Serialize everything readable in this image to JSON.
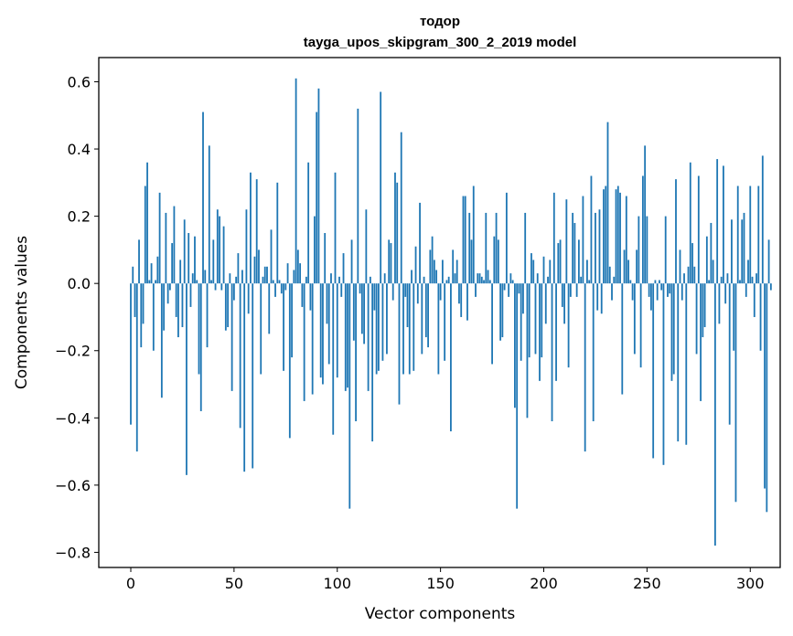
{
  "chart_data": {
    "type": "bar",
    "title": "тодор",
    "subtitle": "tayga_upos_skipgram_300_2_2019 model",
    "xlabel": "Vector components",
    "ylabel": "Components values",
    "xlim": [
      -15.5,
      314.5
    ],
    "ylim": [
      -0.845,
      0.672
    ],
    "xticks": [
      0,
      50,
      100,
      150,
      200,
      250,
      300
    ],
    "xtick_labels": [
      "0",
      "50",
      "100",
      "150",
      "200",
      "250",
      "300"
    ],
    "yticks": [
      -0.8,
      -0.6,
      -0.4,
      -0.2,
      0.0,
      0.2,
      0.4,
      0.6
    ],
    "ytick_labels": [
      "−0.8",
      "−0.6",
      "−0.4",
      "−0.2",
      "0.0",
      "0.2",
      "0.4",
      "0.6"
    ],
    "bar_color": "#1f77b4",
    "grid": false,
    "values": [
      -0.42,
      0.05,
      -0.1,
      -0.5,
      0.13,
      -0.19,
      -0.12,
      0.29,
      0.36,
      0.01,
      0.06,
      -0.2,
      0.01,
      0.08,
      0.27,
      -0.34,
      -0.14,
      0.21,
      -0.06,
      -0.02,
      0.12,
      0.23,
      -0.1,
      -0.16,
      0.07,
      -0.13,
      0.19,
      -0.57,
      0.15,
      -0.07,
      0.03,
      0.14,
      0.01,
      -0.27,
      -0.38,
      0.51,
      0.04,
      -0.19,
      0.41,
      0.01,
      0.13,
      -0.02,
      0.22,
      0.2,
      -0.02,
      0.17,
      -0.14,
      -0.13,
      0.03,
      -0.32,
      -0.05,
      0.02,
      0.09,
      -0.43,
      0.04,
      -0.56,
      0.22,
      -0.09,
      0.33,
      -0.55,
      0.08,
      0.31,
      0.1,
      -0.27,
      0.02,
      0.05,
      0.05,
      -0.15,
      0.16,
      0.01,
      -0.04,
      0.3,
      0.01,
      -0.03,
      -0.26,
      -0.02,
      0.06,
      -0.46,
      -0.22,
      0.04,
      0.61,
      0.1,
      0.06,
      -0.07,
      -0.35,
      0.02,
      0.36,
      -0.08,
      -0.33,
      0.2,
      0.51,
      0.58,
      -0.28,
      -0.3,
      0.15,
      -0.12,
      -0.24,
      0.03,
      -0.45,
      0.33,
      -0.28,
      0.02,
      -0.04,
      0.09,
      -0.32,
      -0.31,
      -0.67,
      0.13,
      -0.17,
      -0.41,
      0.52,
      -0.03,
      -0.15,
      -0.18,
      0.22,
      -0.32,
      0.02,
      -0.47,
      -0.08,
      -0.27,
      -0.26,
      0.57,
      -0.23,
      0.03,
      -0.21,
      0.13,
      0.12,
      -0.05,
      0.33,
      0.3,
      -0.36,
      0.45,
      -0.27,
      -0.04,
      -0.13,
      -0.27,
      0.04,
      -0.26,
      0.11,
      -0.06,
      0.24,
      -0.21,
      0.02,
      -0.16,
      -0.19,
      0.1,
      0.14,
      0.07,
      0.04,
      -0.27,
      -0.05,
      0.07,
      -0.23,
      0.01,
      0.02,
      -0.44,
      0.1,
      0.03,
      0.07,
      -0.06,
      -0.1,
      0.26,
      0.26,
      -0.11,
      0.21,
      0.13,
      0.29,
      -0.04,
      0.03,
      0.03,
      0.02,
      0.01,
      0.21,
      0.04,
      0.01,
      -0.24,
      0.14,
      0.21,
      0.13,
      -0.17,
      -0.16,
      -0.02,
      0.27,
      -0.04,
      0.03,
      0.01,
      -0.37,
      -0.67,
      -0.03,
      -0.23,
      -0.09,
      0.21,
      -0.4,
      -0.22,
      0.09,
      0.07,
      -0.21,
      0.03,
      -0.29,
      -0.22,
      0.08,
      -0.12,
      0.02,
      0.07,
      -0.41,
      0.27,
      -0.29,
      0.12,
      0.13,
      -0.07,
      -0.12,
      0.25,
      -0.25,
      -0.04,
      0.21,
      0.18,
      -0.04,
      0.13,
      0.02,
      0.26,
      -0.5,
      0.07,
      0.01,
      0.32,
      -0.41,
      0.21,
      -0.08,
      0.22,
      -0.09,
      0.28,
      0.29,
      0.48,
      0.05,
      -0.05,
      0.02,
      0.28,
      0.29,
      0.27,
      -0.33,
      0.1,
      0.26,
      0.07,
      0.01,
      -0.05,
      -0.21,
      0.1,
      0.2,
      -0.25,
      0.32,
      0.41,
      0.2,
      -0.04,
      -0.08,
      -0.52,
      0.01,
      -0.05,
      0.01,
      -0.02,
      -0.54,
      0.2,
      -0.04,
      -0.03,
      -0.29,
      -0.27,
      0.31,
      -0.47,
      0.1,
      -0.05,
      0.03,
      -0.48,
      0.05,
      0.36,
      0.12,
      0.05,
      -0.21,
      0.32,
      -0.35,
      -0.16,
      -0.13,
      0.14,
      0.01,
      0.18,
      0.07,
      -0.78,
      0.37,
      -0.12,
      0.02,
      0.35,
      -0.06,
      0.03,
      -0.42,
      0.19,
      -0.2,
      -0.65,
      0.29,
      0.01,
      0.19,
      0.21,
      -0.04,
      0.07,
      0.29,
      0.02,
      -0.1,
      0.03,
      0.29,
      -0.2,
      0.38,
      -0.61,
      -0.68,
      0.13,
      -0.02
    ]
  }
}
